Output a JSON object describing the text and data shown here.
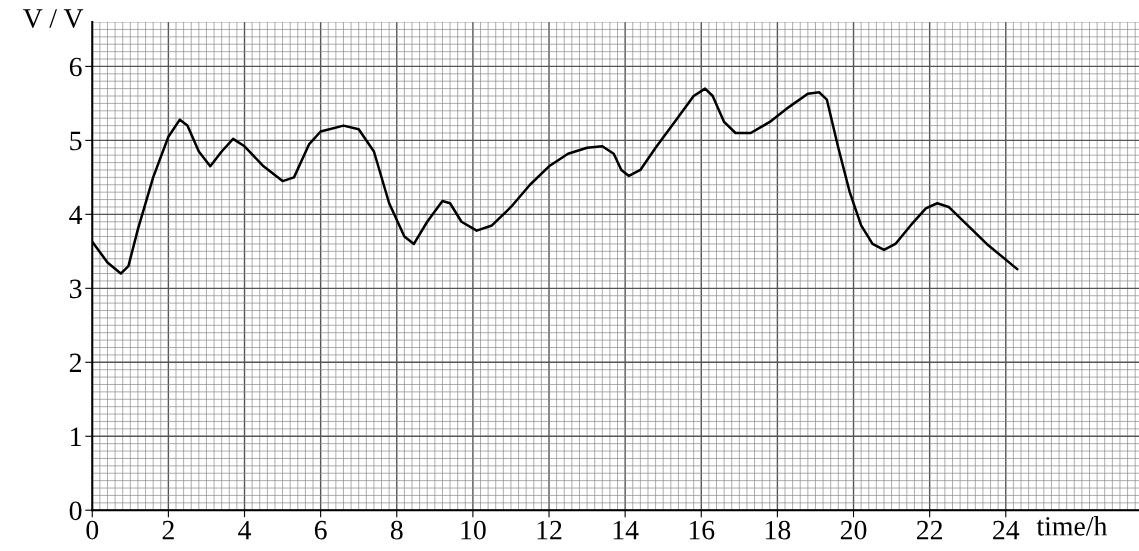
{
  "chart_data": {
    "type": "line",
    "xlabel": "time/h",
    "ylabel": "V / V",
    "color": "#000000",
    "x": [
      0,
      0.4,
      0.75,
      0.95,
      1.2,
      1.6,
      2.0,
      2.3,
      2.5,
      2.8,
      3.1,
      3.4,
      3.7,
      4.0,
      4.5,
      5.0,
      5.3,
      5.7,
      6.0,
      6.6,
      7.0,
      7.4,
      7.8,
      8.2,
      8.45,
      8.8,
      9.2,
      9.4,
      9.7,
      10.1,
      10.5,
      11.0,
      11.5,
      12.0,
      12.5,
      13.0,
      13.4,
      13.7,
      13.9,
      14.1,
      14.4,
      14.8,
      15.3,
      15.8,
      16.1,
      16.3,
      16.6,
      16.9,
      17.3,
      17.8,
      18.3,
      18.8,
      19.1,
      19.3,
      19.6,
      19.9,
      20.2,
      20.5,
      20.8,
      21.1,
      21.5,
      21.9,
      22.2,
      22.5,
      23.0,
      23.5,
      24.3
    ],
    "values": [
      3.63,
      3.35,
      3.2,
      3.3,
      3.8,
      4.5,
      5.05,
      5.28,
      5.2,
      4.85,
      4.65,
      4.85,
      5.02,
      4.92,
      4.65,
      4.45,
      4.5,
      4.95,
      5.12,
      5.2,
      5.15,
      4.85,
      4.15,
      3.7,
      3.6,
      3.9,
      4.18,
      4.15,
      3.9,
      3.78,
      3.85,
      4.1,
      4.4,
      4.65,
      4.82,
      4.9,
      4.92,
      4.82,
      4.6,
      4.52,
      4.6,
      4.9,
      5.25,
      5.6,
      5.7,
      5.6,
      5.25,
      5.1,
      5.1,
      5.25,
      5.45,
      5.63,
      5.65,
      5.55,
      4.9,
      4.3,
      3.85,
      3.6,
      3.52,
      3.6,
      3.85,
      4.08,
      4.15,
      4.1,
      3.85,
      3.6,
      3.26
    ],
    "xlim": [
      0,
      27.5
    ],
    "ylim": [
      0,
      6.6
    ],
    "xticks": [
      0,
      2,
      4,
      6,
      8,
      10,
      12,
      14,
      16,
      18,
      20,
      22,
      24
    ],
    "yticks": [
      0,
      1,
      2,
      3,
      4,
      5,
      6
    ],
    "grid": true,
    "marker": "none",
    "line_style": "solid"
  }
}
